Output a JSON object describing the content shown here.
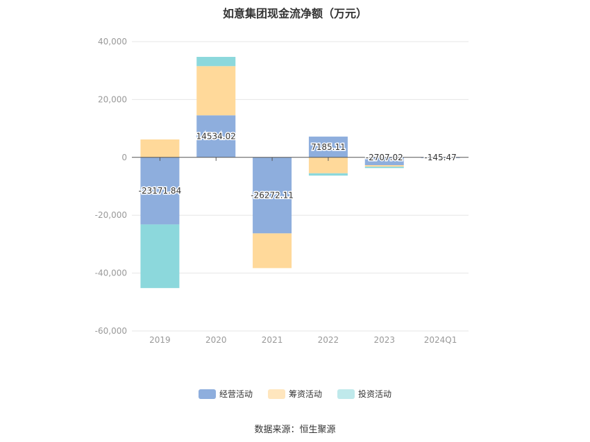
{
  "chart_data": {
    "type": "bar",
    "stacked": true,
    "title": "如意集团现金流净额（万元）",
    "categories": [
      "2019",
      "2020",
      "2021",
      "2022",
      "2023",
      "2024Q1"
    ],
    "series": [
      {
        "name": "经营活动",
        "color": "#8eaedd",
        "values": [
          -23171.84,
          14534.02,
          -26272.11,
          7185.11,
          -2707.02,
          -145.47
        ]
      },
      {
        "name": "筹资活动",
        "color": "#ffd99a",
        "values": [
          6200,
          17000,
          -12000,
          -5500,
          -500,
          0
        ]
      },
      {
        "name": "投资活动",
        "color": "#8cd8dc",
        "values": [
          -22000,
          3200,
          0,
          -800,
          -500,
          0
        ]
      }
    ],
    "data_labels": [
      "-23171.84",
      "14534.02",
      "-26272.11",
      "7185.11",
      "-2707.02",
      "-145.47"
    ],
    "yticks": [
      "40,000",
      "20,000",
      "0",
      "-20,000",
      "-40,000",
      "-60,000"
    ],
    "ytick_values": [
      40000,
      20000,
      0,
      -20000,
      -40000,
      -60000
    ],
    "ylim": [
      -60000,
      40000
    ],
    "grid": true,
    "legend_position": "bottom"
  },
  "legend": [
    {
      "label": "经营活动",
      "color": "#8eaedd"
    },
    {
      "label": "筹资活动",
      "color": "#ffe6be"
    },
    {
      "label": "投资活动",
      "color": "#bfe9eb"
    }
  ],
  "source": "数据来源：恒生聚源"
}
